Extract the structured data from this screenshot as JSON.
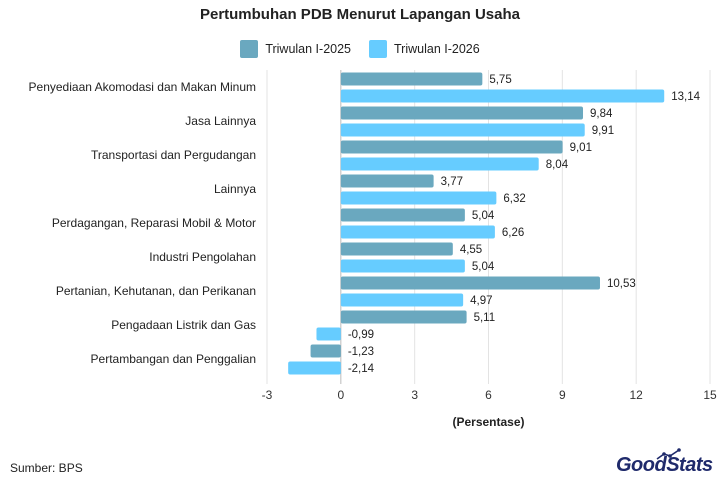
{
  "chart_data": {
    "type": "bar",
    "orientation": "horizontal",
    "title": "Pertumbuhan PDB Menurut Lapangan Usaha",
    "xlabel": "(Persentase)",
    "ylabel": "",
    "xlim": [
      -3,
      15
    ],
    "xticks": [
      -3,
      0,
      3,
      6,
      9,
      12,
      15
    ],
    "grid": true,
    "legend_position": "top-center",
    "categories": [
      "Penyediaan Akomodasi dan Makan Minum",
      "Jasa Lainnya",
      "Transportasi dan Pergudangan",
      "Lainnya",
      "Perdagangan, Reparasi Mobil & Motor",
      "Industri Pengolahan",
      "Pertanian, Kehutanan, dan Perikanan",
      "Pengadaan Listrik dan Gas",
      "Pertambangan dan Penggalian"
    ],
    "series": [
      {
        "name": "Triwulan I-2025",
        "color": "#6aa8bf",
        "values": [
          5.75,
          9.84,
          9.01,
          3.77,
          5.04,
          4.55,
          10.53,
          5.11,
          -1.23
        ],
        "labels": [
          "5,75",
          "9,84",
          "9,01",
          "3,77",
          "5,04",
          "4,55",
          "10,53",
          "5,11",
          "-1,23"
        ]
      },
      {
        "name": "Triwulan I-2026",
        "color": "#66ccff",
        "values": [
          13.14,
          9.91,
          8.04,
          6.32,
          6.26,
          5.04,
          4.97,
          -0.99,
          -2.14
        ],
        "labels": [
          "13,14",
          "9,91",
          "8,04",
          "6,32",
          "6,26",
          "5,04",
          "4,97",
          "-0,99",
          "-2,14"
        ]
      }
    ]
  },
  "footer": {
    "source": "Sumber: BPS",
    "logo_good": "Good",
    "logo_stats": "Stats"
  }
}
